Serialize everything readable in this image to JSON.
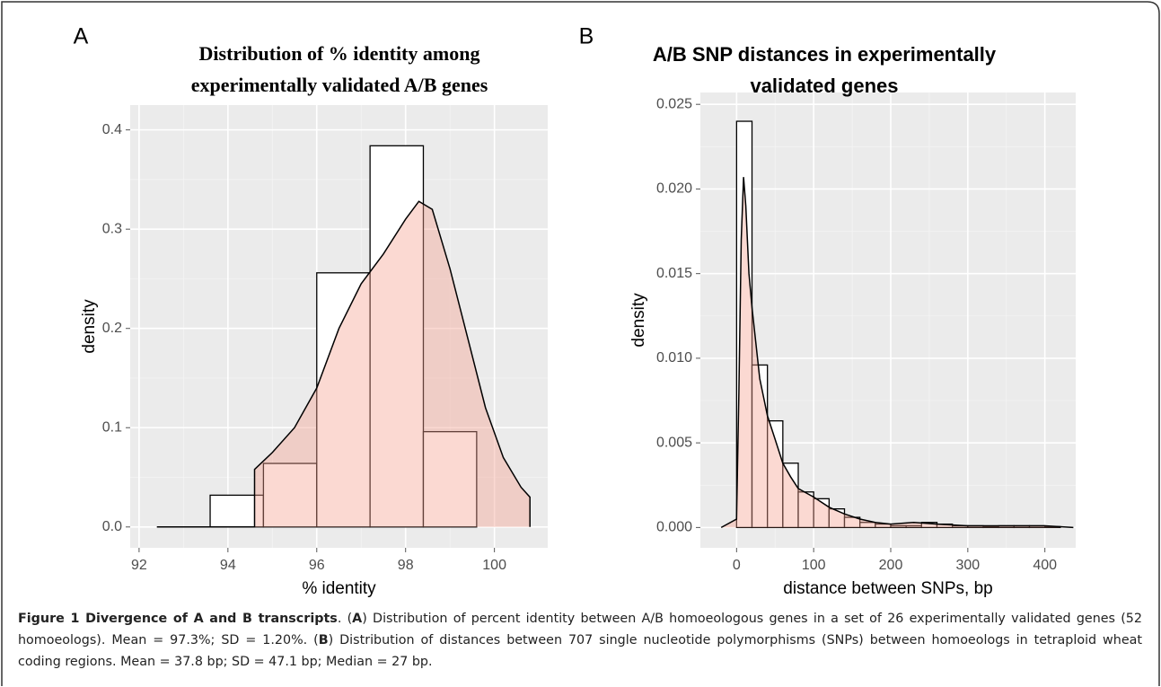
{
  "chart_data": [
    {
      "type": "histogram",
      "panel_label": "A",
      "title": [
        "Distribution of % identity among",
        "experimentally validated  A/B genes"
      ],
      "xlabel": "% identity",
      "ylabel": "density",
      "bins": [
        93.6,
        94.8,
        96.0,
        97.2,
        98.4,
        99.6
      ],
      "values": [
        0.032,
        0.064,
        0.256,
        0.384,
        0.096
      ],
      "density": {
        "x": [
          92.4,
          94.6,
          94.6,
          95.0,
          95.5,
          96.0,
          96.5,
          97.0,
          97.5,
          98.0,
          98.3,
          98.6,
          99.0,
          99.4,
          99.8,
          100.2,
          100.6,
          100.8,
          100.8
        ],
        "values": [
          0,
          0,
          0.058,
          0.075,
          0.1,
          0.14,
          0.2,
          0.245,
          0.275,
          0.31,
          0.328,
          0.32,
          0.26,
          0.19,
          0.12,
          0.07,
          0.04,
          0.03,
          0
        ]
      },
      "xlim": [
        91.8,
        101.2
      ],
      "ylim": [
        -0.021,
        0.425
      ],
      "xticks": [
        92,
        94,
        96,
        98,
        100
      ],
      "yticks": [
        {
          "value": 0,
          "label": "0.0"
        },
        0.1,
        0.2,
        0.3,
        0.4
      ],
      "grid": true,
      "title_font": "serif",
      "bar_color": "#ffffff",
      "density_color": "#f4a08f"
    },
    {
      "type": "histogram",
      "panel_label": "B",
      "title": [
        "A/B SNP distances in experimentally",
        "validated genes"
      ],
      "xlabel": "distance between SNPs, bp",
      "ylabel": "density",
      "bins": [
        0,
        20,
        40,
        60,
        80,
        100,
        120,
        140,
        160,
        180,
        200,
        220,
        240,
        260,
        280,
        300,
        320,
        340,
        360,
        380,
        400,
        420
      ],
      "values": [
        0.024,
        0.0096,
        0.0063,
        0.0038,
        0.0021,
        0.0017,
        0.0011,
        0.0006,
        0.0003,
        0.0002,
        0.0001,
        0.0001,
        0.0003,
        0.0002,
        0.0001,
        0.0001,
        5e-05,
        0.0001,
        0.0001,
        0.0001,
        5e-05
      ],
      "density": {
        "x": [
          -20,
          0,
          3,
          6,
          9,
          12,
          16,
          20,
          30,
          40,
          50,
          60,
          70,
          80,
          100,
          120,
          140,
          160,
          180,
          200,
          230,
          260,
          300,
          350,
          400,
          437
        ],
        "values": [
          0,
          0.0005,
          0.008,
          0.017,
          0.0207,
          0.019,
          0.015,
          0.013,
          0.0088,
          0.0066,
          0.0052,
          0.0038,
          0.003,
          0.0023,
          0.0018,
          0.0012,
          0.0008,
          0.0005,
          0.0003,
          0.0002,
          0.0003,
          0.0002,
          0.0001,
          0.0001,
          0.0001,
          0
        ]
      },
      "xlim": [
        -47,
        440
      ],
      "ylim": [
        -0.0012,
        0.0257
      ],
      "xticks": [
        0,
        100,
        200,
        300,
        400
      ],
      "yticks": [
        {
          "value": 0,
          "label": "0.000"
        },
        {
          "value": 0.005,
          "label": "0.005"
        },
        {
          "value": 0.01,
          "label": "0.010"
        },
        {
          "value": 0.015,
          "label": "0.015"
        },
        {
          "value": 0.02,
          "label": "0.020"
        },
        {
          "value": 0.025,
          "label": "0.025"
        }
      ],
      "grid": true,
      "title_font": "sans-serif",
      "bar_color": "#ffffff",
      "density_color": "#f4a08f"
    }
  ],
  "caption": [
    {
      "text": "Figure 1 Divergence of A and B transcripts",
      "bold": true
    },
    {
      "text": ". ("
    },
    {
      "text": "A",
      "bold": true
    },
    {
      "text": ") Distribution of percent identity between A/B homoeologous genes in a set of 26 experimentally validated genes (52 homoeologs). Mean = 97.3%; SD = 1.20%. ("
    },
    {
      "text": "B",
      "bold": true
    },
    {
      "text": ") Distribution of distances between 707 single nucleotide polymorphisms (SNPs) between homoeologs in tetraploid wheat coding regions. Mean = 37.8 bp; SD = 47.1 bp; Median = 27 bp."
    }
  ]
}
